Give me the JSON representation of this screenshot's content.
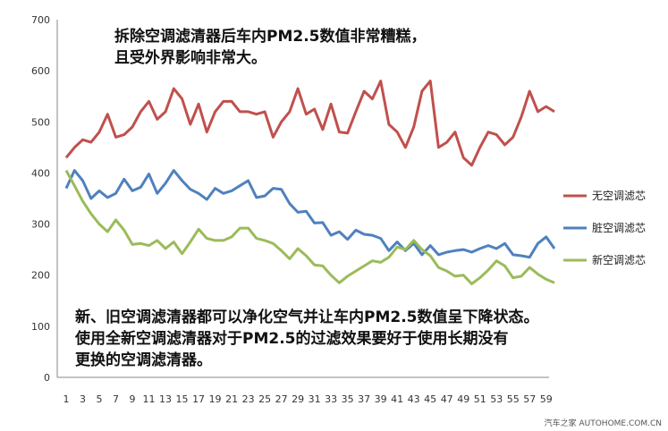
{
  "chart_data": {
    "type": "line",
    "title": "",
    "xlabel": "",
    "ylabel": "",
    "ylim": [
      0,
      700
    ],
    "yticks": [
      0,
      100,
      200,
      300,
      400,
      500,
      600,
      700
    ],
    "xlim": [
      1,
      60
    ],
    "xticks": [
      1,
      3,
      5,
      7,
      9,
      11,
      13,
      15,
      17,
      19,
      21,
      23,
      25,
      27,
      29,
      31,
      33,
      35,
      37,
      39,
      41,
      43,
      45,
      47,
      49,
      51,
      53,
      55,
      57,
      59
    ],
    "grid": false,
    "legend": "right",
    "x": [
      1,
      2,
      3,
      4,
      5,
      6,
      7,
      8,
      9,
      10,
      11,
      12,
      13,
      14,
      15,
      16,
      17,
      18,
      19,
      20,
      21,
      22,
      23,
      24,
      25,
      26,
      27,
      28,
      29,
      30,
      31,
      32,
      33,
      34,
      35,
      36,
      37,
      38,
      39,
      40,
      41,
      42,
      43,
      44,
      45,
      46,
      47,
      48,
      49,
      50,
      51,
      52,
      53,
      54,
      55,
      56,
      57,
      58,
      59,
      60
    ],
    "series": [
      {
        "name": "无空调滤芯",
        "color": "#c0504d",
        "values": [
          430,
          450,
          465,
          460,
          480,
          515,
          470,
          475,
          490,
          520,
          540,
          505,
          520,
          565,
          545,
          495,
          535,
          480,
          520,
          540,
          540,
          520,
          520,
          515,
          520,
          470,
          500,
          520,
          565,
          515,
          525,
          485,
          535,
          480,
          478,
          520,
          560,
          545,
          580,
          495,
          480,
          450,
          490,
          560,
          580,
          450,
          460,
          480,
          430,
          415,
          450,
          480,
          475,
          455,
          470,
          510,
          560,
          520,
          530,
          520
        ]
      },
      {
        "name": "脏空调滤芯",
        "color": "#4f81bd",
        "values": [
          370,
          405,
          385,
          350,
          365,
          352,
          360,
          388,
          365,
          372,
          398,
          360,
          380,
          405,
          385,
          368,
          360,
          348,
          370,
          360,
          365,
          375,
          385,
          352,
          355,
          370,
          368,
          340,
          323,
          325,
          302,
          303,
          278,
          285,
          270,
          288,
          280,
          278,
          272,
          248,
          265,
          248,
          262,
          240,
          258,
          240,
          245,
          248,
          250,
          245,
          252,
          258,
          252,
          262,
          240,
          238,
          235,
          262,
          275,
          252
        ]
      },
      {
        "name": "新空调滤芯",
        "color": "#9bbb59",
        "values": [
          405,
          375,
          345,
          320,
          300,
          285,
          308,
          288,
          260,
          262,
          258,
          268,
          252,
          265,
          242,
          265,
          290,
          272,
          268,
          268,
          275,
          292,
          292,
          272,
          268,
          262,
          248,
          232,
          252,
          238,
          220,
          218,
          200,
          185,
          198,
          208,
          218,
          228,
          225,
          235,
          255,
          250,
          268,
          250,
          238,
          215,
          208,
          198,
          200,
          183,
          195,
          210,
          228,
          218,
          195,
          198,
          215,
          202,
          192,
          185
        ]
      }
    ],
    "annotations": [
      "拆除空调滤清器后车内PM2.5数值非常糟糕，",
      "且受外界影响非常大。",
      "新、旧空调滤清器都可以净化空气并让车内PM2.5数值呈下降状态。",
      "使用全新空调滤清器对于PM2.5的过滤效果要好于使用长期没有",
      "更换的空调滤清器。"
    ],
    "watermark": "汽车之家 AUTOHOME.COM.CN"
  }
}
